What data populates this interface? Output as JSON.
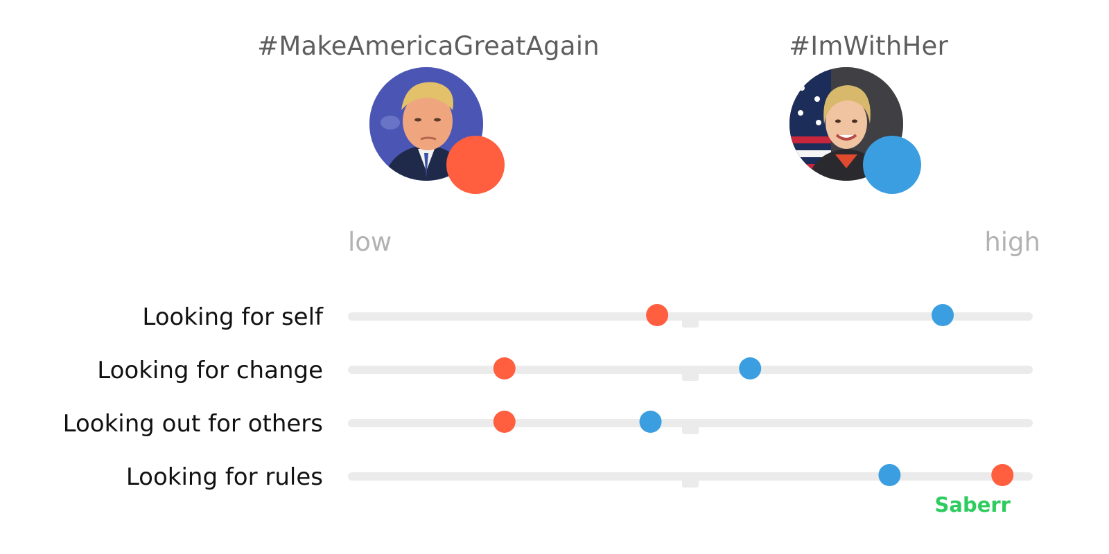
{
  "groups": [
    {
      "hashtag": "#MakeAmericaGreatAgain",
      "color": "#ff5e3f",
      "avatar": "man-portrait-icon"
    },
    {
      "hashtag": "#ImWithHer",
      "color": "#3b9ee0",
      "avatar": "woman-portrait-icon"
    }
  ],
  "scale": {
    "low": "low",
    "high": "high"
  },
  "brand": {
    "name": "Saberr",
    "color": "#2ecc5f"
  },
  "chart_data": {
    "type": "scatter",
    "title": "",
    "xlim": [
      0,
      100
    ],
    "midpoint": 50,
    "categories": [
      "Looking for self",
      "Looking for change",
      "Looking out for others",
      "Looking for rules"
    ],
    "series": [
      {
        "name": "#MakeAmericaGreatAgain",
        "color": "#ff5e3f",
        "values": [
          45,
          22,
          22,
          97
        ]
      },
      {
        "name": "#ImWithHer",
        "color": "#3b9ee0",
        "values": [
          88,
          59,
          44,
          80
        ]
      }
    ],
    "track_color": "#ebebeb",
    "grid": false,
    "legend": "top"
  }
}
